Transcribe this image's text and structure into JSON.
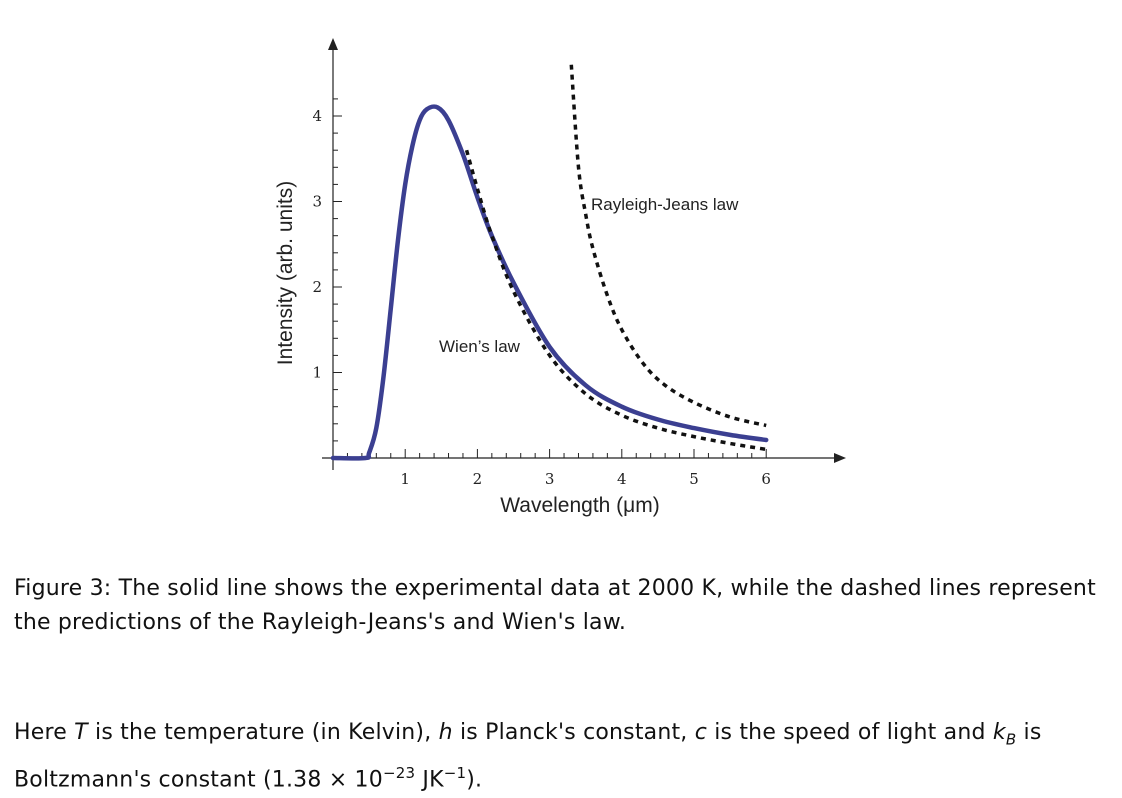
{
  "chart_data": {
    "type": "line",
    "xlabel": "Wavelength (μm)",
    "ylabel": "Intensity (arb. units)",
    "xlim": [
      0,
      7
    ],
    "ylim": [
      0,
      4.5
    ],
    "x_ticks": [
      1,
      2,
      3,
      4,
      5,
      6
    ],
    "y_ticks": [
      1,
      2,
      3,
      4
    ],
    "grid": false,
    "series": [
      {
        "style": "solid",
        "color": "#3b3f91",
        "x": [
          0.0,
          0.45,
          0.5,
          0.6,
          0.7,
          0.8,
          0.9,
          1.0,
          1.1,
          1.2,
          1.3,
          1.45,
          1.6,
          1.8,
          2.0,
          2.2,
          2.5,
          3.0,
          3.5,
          4.0,
          4.5,
          5.0,
          5.5,
          6.0
        ],
        "y": [
          0.0,
          0.0,
          0.06,
          0.35,
          0.95,
          1.75,
          2.55,
          3.2,
          3.65,
          3.95,
          4.08,
          4.1,
          3.95,
          3.55,
          3.05,
          2.6,
          2.05,
          1.3,
          0.85,
          0.6,
          0.45,
          0.35,
          0.27,
          0.21
        ]
      },
      {
        "name": "Wien’s law",
        "style": "dashed",
        "color": "#111111",
        "x": [
          1.85,
          2.0,
          2.2,
          2.5,
          3.0,
          3.5,
          4.0,
          4.5,
          5.0,
          5.5,
          6.0
        ],
        "y": [
          3.6,
          3.15,
          2.6,
          1.95,
          1.2,
          0.75,
          0.5,
          0.35,
          0.25,
          0.17,
          0.1
        ]
      },
      {
        "name": "Rayleigh-Jeans law",
        "style": "dashed",
        "color": "#111111",
        "x": [
          3.3,
          3.4,
          3.5,
          3.6,
          3.8,
          4.0,
          4.3,
          4.6,
          5.0,
          5.5,
          6.0
        ],
        "y": [
          4.6,
          3.4,
          2.85,
          2.45,
          1.9,
          1.5,
          1.1,
          0.85,
          0.65,
          0.48,
          0.38
        ]
      }
    ],
    "annotations": [
      "Rayleigh-Jeans law",
      "Wien’s law"
    ]
  },
  "caption": {
    "label": "Figure 3:",
    "text": "The solid line shows the experimental data at 2000 K, while the dashed lines represent the predictions of the Rayleigh-Jeans's and Wien's law."
  },
  "note": {
    "part1": "Here ",
    "var_T": "T",
    "part2": " is the temperature (in Kelvin), ",
    "var_h": "h",
    "part3": " is Planck's constant, ",
    "var_c": "c",
    "part4": " is the speed of light and ",
    "var_k": "k",
    "var_k_sub": "B",
    "part5": " is Boltzmann's constant (1.38 × 10",
    "exp": "−23",
    "part6": " JK",
    "unit_exp": "−1",
    "part7": ")."
  }
}
